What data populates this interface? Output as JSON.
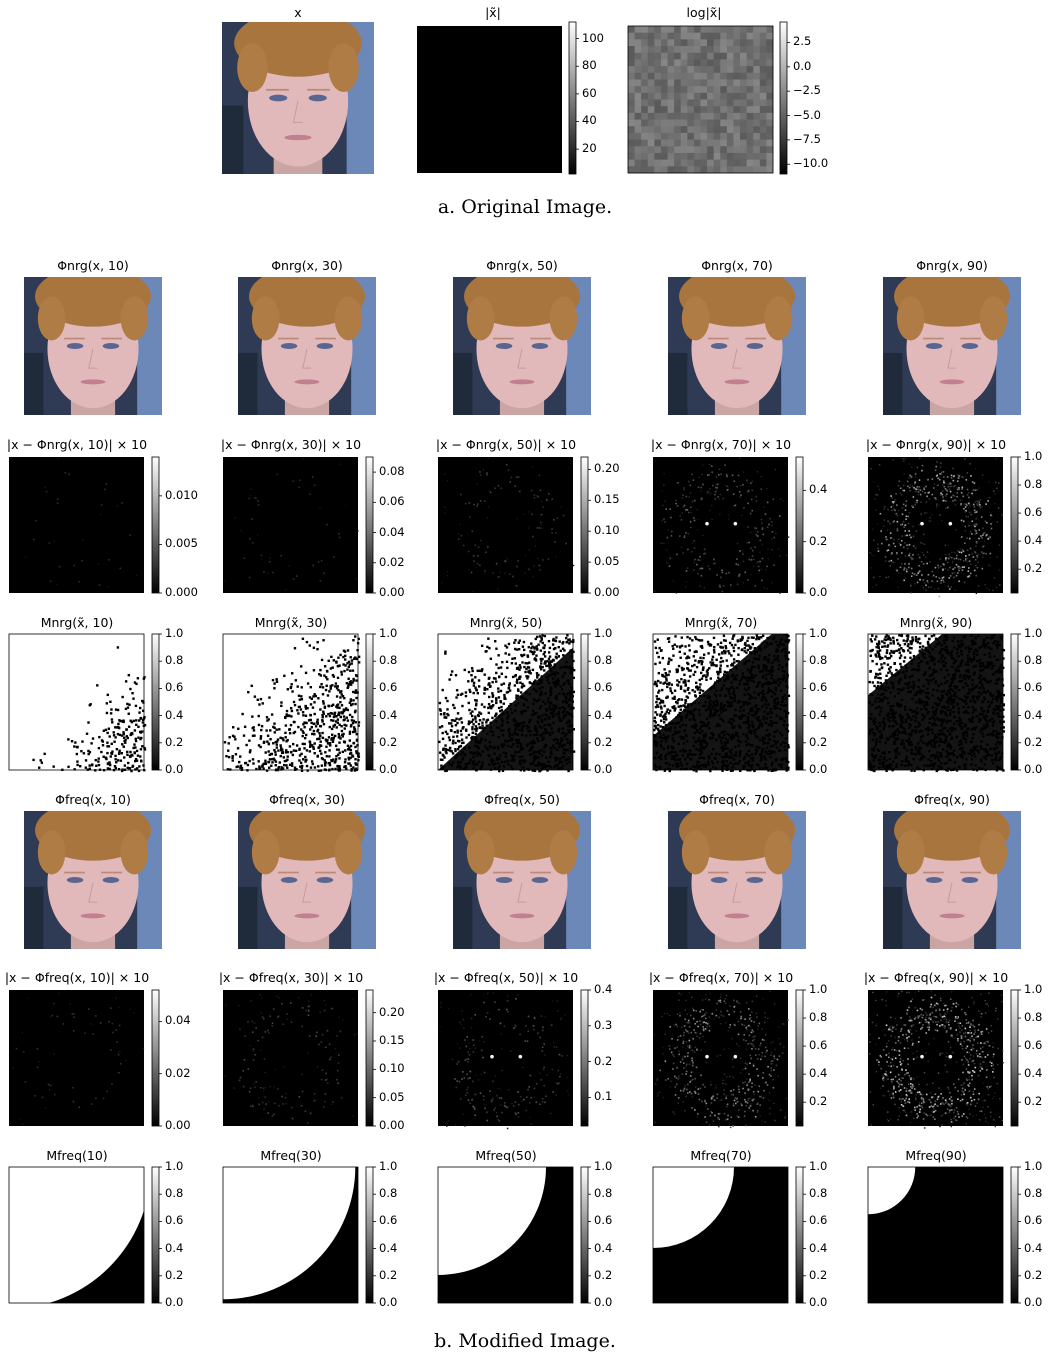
{
  "figure": {
    "caption_a": "a.  Original Image.",
    "caption_b": "b.  Modified Image.",
    "original_row": [
      {
        "title": "x",
        "kind": "face"
      },
      {
        "title": "|x̃|",
        "kind": "black",
        "colorbar_ticks": [
          "100",
          "80",
          "60",
          "40",
          "20"
        ],
        "cmin": 2,
        "cmax": 112
      },
      {
        "title": "log|x̃|",
        "kind": "noise",
        "colorbar_ticks": [
          "2.5",
          "0.0",
          "−2.5",
          "−5.0",
          "−7.5",
          "−10.0"
        ],
        "cmin": -11,
        "cmax": 4.6
      }
    ],
    "rows": [
      {
        "kind": "face",
        "titles": [
          "Φnrg(x, 10)",
          "Φnrg(x, 30)",
          "Φnrg(x, 50)",
          "Φnrg(x, 70)",
          "Φnrg(x, 90)"
        ]
      },
      {
        "kind": "diff",
        "titles": [
          "|x − Φnrg(x, 10)| × 10",
          "|x − Φnrg(x, 30)| × 10",
          "|x − Φnrg(x, 50)| × 10",
          "|x − Φnrg(x, 70)| × 10",
          "|x − Φnrg(x, 90)| × 10"
        ],
        "colorbars": [
          {
            "ticks": [
              "0.010",
              "0.005",
              "0.000"
            ],
            "cmin": 0,
            "cmax": 0.014
          },
          {
            "ticks": [
              "0.08",
              "0.06",
              "0.04",
              "0.02",
              "0.00"
            ],
            "cmin": 0,
            "cmax": 0.09
          },
          {
            "ticks": [
              "0.20",
              "0.15",
              "0.10",
              "0.05",
              "0.00"
            ],
            "cmin": 0,
            "cmax": 0.22
          },
          {
            "ticks": [
              "0.4",
              "0.2",
              "0.0"
            ],
            "cmin": 0,
            "cmax": 0.53
          },
          {
            "ticks": [
              "1.0",
              "0.8",
              "0.6",
              "0.4",
              "0.2"
            ],
            "cmin": 0.03,
            "cmax": 1.0
          }
        ]
      },
      {
        "kind": "mask_nrg",
        "titles": [
          "Mnrg(x̃, 10)",
          "Mnrg(x̃, 30)",
          "Mnrg(x̃, 50)",
          "Mnrg(x̃, 70)",
          "Mnrg(x̃, 90)"
        ],
        "colorbars": [
          {
            "ticks": [
              "1.0",
              "0.8",
              "0.6",
              "0.4",
              "0.2",
              "0.0"
            ],
            "cmin": 0,
            "cmax": 1
          },
          {
            "ticks": [
              "1.0",
              "0.8",
              "0.6",
              "0.4",
              "0.2",
              "0.0"
            ],
            "cmin": 0,
            "cmax": 1
          },
          {
            "ticks": [
              "1.0",
              "0.8",
              "0.6",
              "0.4",
              "0.2",
              "0.0"
            ],
            "cmin": 0,
            "cmax": 1
          },
          {
            "ticks": [
              "1.0",
              "0.8",
              "0.6",
              "0.4",
              "0.2",
              "0.0"
            ],
            "cmin": 0,
            "cmax": 1
          },
          {
            "ticks": [
              "1.0",
              "0.8",
              "0.6",
              "0.4",
              "0.2",
              "0.0"
            ],
            "cmin": 0,
            "cmax": 1
          }
        ]
      },
      {
        "kind": "face",
        "titles": [
          "Φfreq(x, 10)",
          "Φfreq(x, 30)",
          "Φfreq(x, 50)",
          "Φfreq(x, 70)",
          "Φfreq(x, 90)"
        ]
      },
      {
        "kind": "diff",
        "titles": [
          "|x − Φfreq(x, 10)| × 10",
          "|x − Φfreq(x, 30)| × 10",
          "|x − Φfreq(x, 50)| × 10",
          "|x − Φfreq(x, 70)| × 10",
          "|x − Φfreq(x, 90)| × 10"
        ],
        "colorbars": [
          {
            "ticks": [
              "0.04",
              "0.02",
              "0.00"
            ],
            "cmin": 0,
            "cmax": 0.052
          },
          {
            "ticks": [
              "0.20",
              "0.15",
              "0.10",
              "0.05",
              "0.00"
            ],
            "cmin": 0,
            "cmax": 0.24
          },
          {
            "ticks": [
              "0.4",
              "0.3",
              "0.2",
              "0.1"
            ],
            "cmin": 0.02,
            "cmax": 0.4
          },
          {
            "ticks": [
              "1.0",
              "0.8",
              "0.6",
              "0.4",
              "0.2"
            ],
            "cmin": 0.03,
            "cmax": 1.0
          },
          {
            "ticks": [
              "1.0",
              "0.8",
              "0.6",
              "0.4",
              "0.2"
            ],
            "cmin": 0.03,
            "cmax": 1.0
          }
        ]
      },
      {
        "kind": "mask_freq",
        "titles": [
          "Mfreq(10)",
          "Mfreq(30)",
          "Mfreq(50)",
          "Mfreq(70)",
          "Mfreq(90)"
        ],
        "radius_fraction": [
          1.05,
          0.98,
          0.8,
          0.6,
          0.35
        ],
        "colorbars": [
          {
            "ticks": [
              "1.0",
              "0.8",
              "0.6",
              "0.4",
              "0.2",
              "0.0"
            ],
            "cmin": 0,
            "cmax": 1
          },
          {
            "ticks": [
              "1.0",
              "0.8",
              "0.6",
              "0.4",
              "0.2",
              "0.0"
            ],
            "cmin": 0,
            "cmax": 1
          },
          {
            "ticks": [
              "1.0",
              "0.8",
              "0.6",
              "0.4",
              "0.2",
              "0.0"
            ],
            "cmin": 0,
            "cmax": 1
          },
          {
            "ticks": [
              "1.0",
              "0.8",
              "0.6",
              "0.4",
              "0.2",
              "0.0"
            ],
            "cmin": 0,
            "cmax": 1
          },
          {
            "ticks": [
              "1.0",
              "0.8",
              "0.6",
              "0.4",
              "0.2",
              "0.0"
            ],
            "cmin": 0,
            "cmax": 1
          }
        ]
      }
    ]
  }
}
